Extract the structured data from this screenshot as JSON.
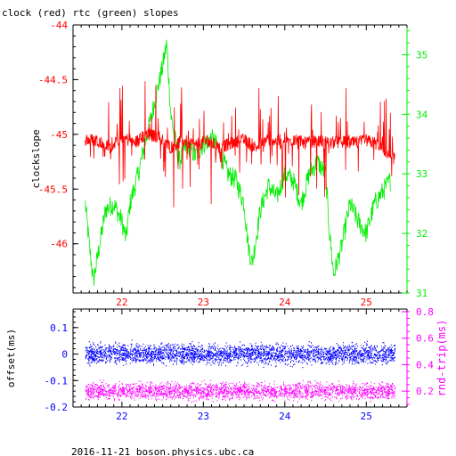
{
  "title": "clock (red) rtc (green) slopes",
  "footer": "2016-11-21 boson.physics.ubc.ca",
  "colors": {
    "red": "#ff0000",
    "green": "#00ee00",
    "blue": "#0000ff",
    "magenta": "#ff00ff",
    "black": "#000000"
  },
  "chart_data": [
    {
      "type": "line",
      "panel": "top",
      "ylabel": "clockslope",
      "y2label": "",
      "xlim": [
        21.4,
        25.5
      ],
      "ylim": [
        -46.45,
        -44.0
      ],
      "y2lim": [
        31.0,
        35.5
      ],
      "x_ticks": [
        22,
        23,
        24,
        25
      ],
      "y_ticks": [
        -44,
        -44.5,
        -45,
        -45.5,
        -46
      ],
      "y2_ticks": [
        31,
        32,
        33,
        34,
        35
      ],
      "series": [
        {
          "color": "red",
          "axis": "left",
          "x": [
            21.55,
            21.7,
            21.85,
            22.0,
            22.15,
            22.3,
            22.45,
            22.6,
            22.75,
            22.9,
            23.05,
            23.2,
            23.35,
            23.5,
            23.65,
            23.8,
            23.95,
            24.1,
            24.25,
            24.4,
            24.55,
            24.7,
            24.85,
            25.0,
            25.15,
            25.3,
            25.35
          ],
          "y": [
            -45.05,
            -45.05,
            -45.12,
            -45.02,
            -45.08,
            -45.0,
            -45.02,
            -45.12,
            -45.05,
            -45.1,
            -45.06,
            -45.12,
            -45.08,
            -45.05,
            -45.12,
            -45.03,
            -45.08,
            -45.05,
            -45.08,
            -45.06,
            -45.08,
            -45.07,
            -45.08,
            -45.06,
            -45.09,
            -45.2,
            -45.22
          ]
        },
        {
          "color": "green",
          "axis": "right",
          "x": [
            21.55,
            21.6,
            21.65,
            21.7,
            21.8,
            21.9,
            22.0,
            22.05,
            22.1,
            22.2,
            22.3,
            22.4,
            22.5,
            22.55,
            22.6,
            22.7,
            22.8,
            22.9,
            23.0,
            23.1,
            23.2,
            23.3,
            23.4,
            23.5,
            23.55,
            23.6,
            23.7,
            23.8,
            23.9,
            24.0,
            24.1,
            24.2,
            24.3,
            24.4,
            24.5,
            24.55,
            24.6,
            24.7,
            24.8,
            24.9,
            25.0,
            25.1,
            25.2,
            25.3
          ],
          "y": [
            32.5,
            31.8,
            31.2,
            31.6,
            32.4,
            32.5,
            32.2,
            31.9,
            32.5,
            33.0,
            33.6,
            34.2,
            34.8,
            35.2,
            34.0,
            33.2,
            33.5,
            33.3,
            33.5,
            33.6,
            33.4,
            33.0,
            32.9,
            32.5,
            31.8,
            31.5,
            32.4,
            32.8,
            32.6,
            33.0,
            32.9,
            32.5,
            33.0,
            33.2,
            33.0,
            32.0,
            31.3,
            31.8,
            32.5,
            32.2,
            32.0,
            32.5,
            32.7,
            32.9
          ]
        }
      ]
    },
    {
      "type": "scatter",
      "panel": "bottom",
      "ylabel": "offset(ms)",
      "y2label": "rnd-trip(ms)",
      "xlim": [
        21.4,
        25.5
      ],
      "ylim": [
        -0.2,
        0.17
      ],
      "y2lim": [
        0.08,
        0.82
      ],
      "x_ticks": [
        22,
        23,
        24,
        25
      ],
      "y_ticks": [
        0.1,
        0,
        -0.1,
        -0.2
      ],
      "y2_ticks": [
        0.8,
        0.6,
        0.4,
        0.2
      ],
      "series": [
        {
          "color": "blue",
          "axis": "left",
          "x_range": [
            21.55,
            25.35
          ],
          "center": 0.0,
          "spread": 0.03
        },
        {
          "color": "magenta",
          "axis": "right",
          "x_range": [
            21.55,
            25.35
          ],
          "center": 0.2,
          "spread": 0.05
        }
      ]
    }
  ]
}
